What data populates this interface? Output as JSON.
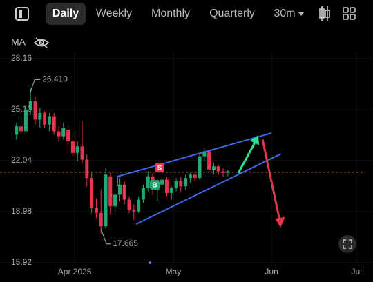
{
  "toolbar": {
    "tabs": [
      "Daily",
      "Weekly",
      "Monthly",
      "Quarterly"
    ],
    "interval": "30m"
  },
  "indicator": "MA",
  "signals": [
    "S",
    "B"
  ],
  "chart_data": {
    "type": "candlestick",
    "up_color": "#1fa971",
    "down_color": "#e5354f",
    "open": [
      23.6,
      24.1,
      23.8,
      25.1,
      25.6,
      24.5,
      24.9,
      24.2,
      24.7,
      23.8,
      23.5,
      23.9,
      23.2,
      22.5,
      22.9,
      22.1,
      21.0,
      19.2,
      18.9,
      18.1,
      21.1,
      19.3,
      20.0,
      20.6,
      19.7,
      19.1,
      19.0,
      19.7,
      20.4,
      21.1,
      20.3,
      20.6,
      20.9,
      20.1,
      20.4,
      20.8,
      20.5,
      21.0,
      21.2,
      21.0,
      22.3,
      22.6,
      21.5,
      21.7,
      21.4,
      21.3
    ],
    "high": [
      24.3,
      24.6,
      25.3,
      26.41,
      25.9,
      25.2,
      25.0,
      24.9,
      24.9,
      24.1,
      24.3,
      24.1,
      23.6,
      23.2,
      24.4,
      22.4,
      21.3,
      19.8,
      20.3,
      21.6,
      21.3,
      20.3,
      21.0,
      20.8,
      19.9,
      19.4,
      19.9,
      20.6,
      21.4,
      21.3,
      20.9,
      21.0,
      21.1,
      20.5,
      21.0,
      21.1,
      21.2,
      21.3,
      21.4,
      22.5,
      22.8,
      22.7,
      21.9,
      21.8,
      21.6,
      21.5
    ],
    "low": [
      23.3,
      23.6,
      23.6,
      24.8,
      24.2,
      24.0,
      24.0,
      23.8,
      23.6,
      23.2,
      23.3,
      23.0,
      22.3,
      22.0,
      21.9,
      20.5,
      18.9,
      18.6,
      17.665,
      18.0,
      18.8,
      19.0,
      19.6,
      19.4,
      18.9,
      18.5,
      18.9,
      19.5,
      20.2,
      20.0,
      19.6,
      20.3,
      19.9,
      19.7,
      20.2,
      20.2,
      20.3,
      20.7,
      20.8,
      20.9,
      22.0,
      21.3,
      21.2,
      21.2,
      21.1,
      21.1
    ],
    "close": [
      24.1,
      23.8,
      25.1,
      25.6,
      24.5,
      24.9,
      24.2,
      24.7,
      23.8,
      23.5,
      24.0,
      23.2,
      22.5,
      22.9,
      22.1,
      21.0,
      19.2,
      18.9,
      18.1,
      21.2,
      19.3,
      20.0,
      20.6,
      19.7,
      19.1,
      19.0,
      19.7,
      20.4,
      21.1,
      20.3,
      20.6,
      20.9,
      20.1,
      20.4,
      20.8,
      20.5,
      21.0,
      21.2,
      21.0,
      22.3,
      22.6,
      21.5,
      21.7,
      21.4,
      21.3,
      21.4
    ],
    "high_label": {
      "value": 26.41,
      "label": "26.410"
    },
    "low_label": 17.665,
    "price_line": 21.34,
    "ylim": [
      15.92,
      28.16
    ],
    "yticks": [
      28.16,
      {
        "value": 25.1,
        "label": "25.10"
      },
      22.04,
      18.98,
      15.92
    ],
    "xlim": [
      -3.5,
      75.9
    ],
    "xticks": [
      {
        "value": 12.4,
        "label": "Apr 2025"
      },
      {
        "value": 33.4,
        "label": "May"
      },
      {
        "value": 54.3,
        "label": "Jun"
      },
      {
        "value": 72.4,
        "label": "Jul"
      }
    ],
    "grid": true
  }
}
